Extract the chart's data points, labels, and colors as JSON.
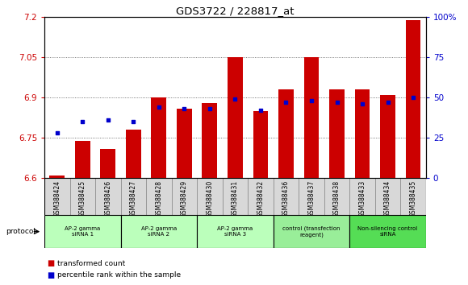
{
  "title": "GDS3722 / 228817_at",
  "samples": [
    "GSM388424",
    "GSM388425",
    "GSM388426",
    "GSM388427",
    "GSM388428",
    "GSM388429",
    "GSM388430",
    "GSM388431",
    "GSM388432",
    "GSM388436",
    "GSM388437",
    "GSM388438",
    "GSM388433",
    "GSM388434",
    "GSM388435"
  ],
  "transformed_count": [
    6.61,
    6.74,
    6.71,
    6.78,
    6.9,
    6.86,
    6.88,
    7.05,
    6.85,
    6.93,
    7.05,
    6.93,
    6.93,
    6.91,
    7.19
  ],
  "percentile_rank": [
    28,
    35,
    36,
    35,
    44,
    43,
    43,
    49,
    42,
    47,
    48,
    47,
    46,
    47,
    50
  ],
  "group_labels": [
    "AP-2 gamma\nsiRNA 1",
    "AP-2 gamma\nsiRNA 2",
    "AP-2 gamma\nsiRNA 3",
    "control (transfection\nreagent)",
    "Non-silencing control\nsiRNA"
  ],
  "group_colors": [
    "#bbffbb",
    "#bbffbb",
    "#bbffbb",
    "#99ee99",
    "#55dd55"
  ],
  "group_ranges": [
    [
      0,
      3
    ],
    [
      3,
      6
    ],
    [
      6,
      9
    ],
    [
      9,
      12
    ],
    [
      12,
      15
    ]
  ],
  "ylim_left": [
    6.6,
    7.2
  ],
  "ylim_right": [
    0,
    100
  ],
  "yticks_left": [
    6.6,
    6.75,
    6.9,
    7.05,
    7.2
  ],
  "yticks_right": [
    0,
    25,
    50,
    75,
    100
  ],
  "bar_color": "#cc0000",
  "dot_color": "#0000cc",
  "sample_bg_color": "#d8d8d8",
  "plot_bg_color": "#ffffff",
  "ylabel_left_color": "#cc0000",
  "ylabel_right_color": "#0000cc",
  "legend_tc": "transformed count",
  "legend_pr": "percentile rank within the sample",
  "bar_width": 0.6
}
